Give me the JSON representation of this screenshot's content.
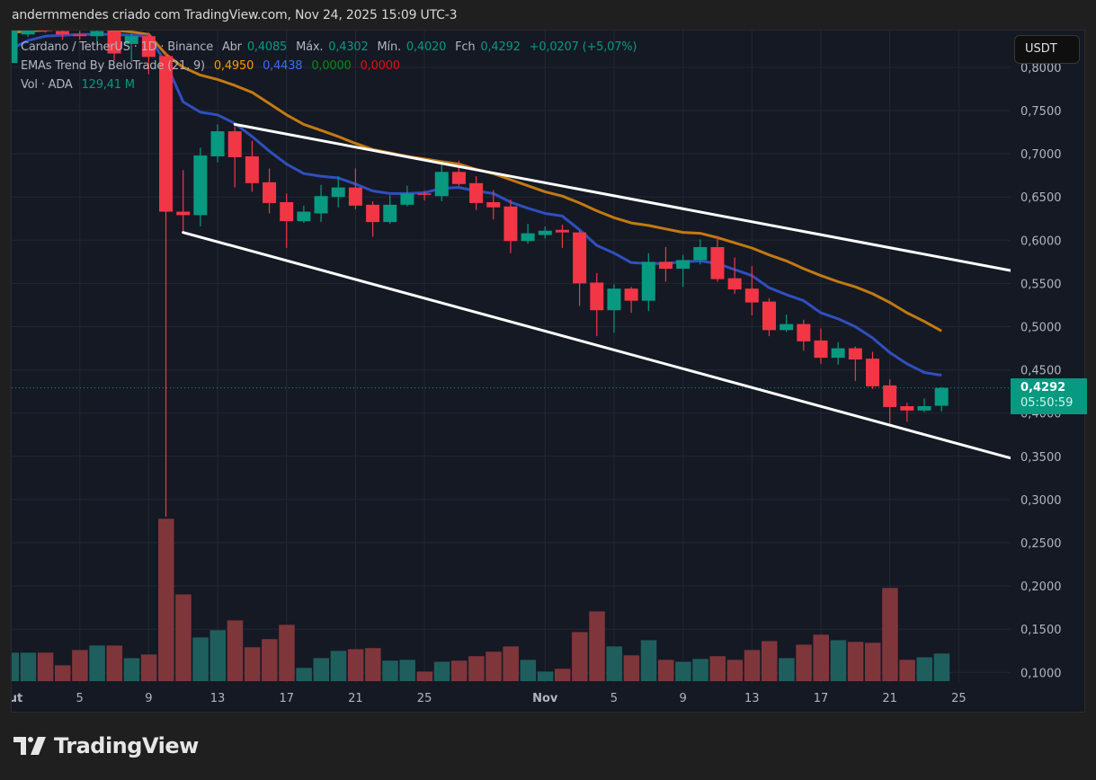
{
  "header": {
    "attribution": "andermmendes criado com TradingView.com, Nov 24, 2025 15:09 UTC-3"
  },
  "legend": {
    "symbol": "Cardano / TetherUS · 1D · Binance",
    "open_label": "Abr",
    "open": "0,4085",
    "high_label": "Máx.",
    "high": "0,4302",
    "low_label": "Mín.",
    "low": "0,4020",
    "close_label": "Fch",
    "close": "0,4292",
    "change": "+0,0207 (+5,07%)",
    "indicator": "EMAs Trend By BeloTrade (21, 9)",
    "ema_slow": "0,4950",
    "ema_fast": "0,4438",
    "ind_green": "0,0000",
    "ind_red": "0,0000",
    "volume_label": "Vol · ADA",
    "volume": "129,41 M"
  },
  "currency_button": "USDT",
  "last_price": {
    "price": "0,4292",
    "countdown": "05:50:59"
  },
  "logo": {
    "text": "TradingView"
  },
  "colors": {
    "up": "#089981",
    "down": "#f23645",
    "vol_up": "#1e5f5e",
    "vol_down": "#7f363b",
    "ema_slow": "#c27a12",
    "ema_fast": "#2f4fbf",
    "trendline": "#ffffff",
    "background": "#151924",
    "legend_slow": "#ff9800",
    "legend_fast": "#3a6cf4",
    "legend_green": "#0b8a13",
    "legend_red": "#e01010"
  },
  "chart_data": {
    "type": "candlestick",
    "title": "Cardano / TetherUS · 1D · Binance",
    "interval": "1D",
    "grid": true,
    "y_axis": {
      "position": "right",
      "unit": "USDT",
      "ylim": [
        0.08,
        0.845
      ],
      "tick_labels": [
        "0,8000",
        "0,7500",
        "0,7000",
        "0,6500",
        "0,6000",
        "0,5500",
        "0,5000",
        "0,4500",
        "0,4000",
        "0,3500",
        "0,3000",
        "0,2500",
        "0,2000",
        "0,1500",
        "0,1000"
      ],
      "ticks": [
        0.8,
        0.75,
        0.7,
        0.65,
        0.6,
        0.55,
        0.5,
        0.45,
        0.4,
        0.35,
        0.3,
        0.25,
        0.2,
        0.15,
        0.1
      ]
    },
    "x_axis": {
      "tick_labels": [
        "Out",
        "5",
        "9",
        "13",
        "17",
        "21",
        "25",
        "Nov",
        "5",
        "9",
        "13",
        "17",
        "21",
        "25"
      ],
      "ticks": [
        "2025-10-01",
        "2025-10-05",
        "2025-10-09",
        "2025-10-13",
        "2025-10-17",
        "2025-10-21",
        "2025-10-25",
        "2025-11-01",
        "2025-11-05",
        "2025-11-09",
        "2025-11-13",
        "2025-11-17",
        "2025-11-21",
        "2025-11-25"
      ]
    },
    "candles": [
      {
        "d": "2025-10-01",
        "o": 0.805,
        "h": 0.85,
        "l": 0.8,
        "c": 0.845,
        "v": 133.5
      },
      {
        "d": "2025-10-02",
        "o": 0.838,
        "h": 0.846,
        "l": 0.835,
        "c": 0.843,
        "v": 133.5
      },
      {
        "d": "2025-10-03",
        "o": 0.846,
        "h": 0.852,
        "l": 0.84,
        "c": 0.842,
        "v": 133.5
      },
      {
        "d": "2025-10-04",
        "o": 0.842,
        "h": 0.846,
        "l": 0.832,
        "c": 0.838,
        "v": 74.5
      },
      {
        "d": "2025-10-05",
        "o": 0.838,
        "h": 0.842,
        "l": 0.832,
        "c": 0.836,
        "v": 146
      },
      {
        "d": "2025-10-06",
        "o": 0.836,
        "h": 0.846,
        "l": 0.83,
        "c": 0.842,
        "v": 167
      },
      {
        "d": "2025-10-07",
        "o": 0.842,
        "h": 0.846,
        "l": 0.808,
        "c": 0.816,
        "v": 167
      },
      {
        "d": "2025-10-08",
        "o": 0.827,
        "h": 0.841,
        "l": 0.806,
        "c": 0.836,
        "v": 108
      },
      {
        "d": "2025-10-09",
        "o": 0.836,
        "h": 0.84,
        "l": 0.792,
        "c": 0.812,
        "v": 125
      },
      {
        "d": "2025-10-10",
        "o": 0.813,
        "h": 0.818,
        "l": 0.28,
        "c": 0.633,
        "v": 761.5
      },
      {
        "d": "2025-10-11",
        "o": 0.633,
        "h": 0.681,
        "l": 0.608,
        "c": 0.629,
        "v": 407
      },
      {
        "d": "2025-10-12",
        "o": 0.629,
        "h": 0.707,
        "l": 0.616,
        "c": 0.698,
        "v": 205
      },
      {
        "d": "2025-10-13",
        "o": 0.697,
        "h": 0.734,
        "l": 0.69,
        "c": 0.726,
        "v": 239
      },
      {
        "d": "2025-10-14",
        "o": 0.726,
        "h": 0.732,
        "l": 0.661,
        "c": 0.696,
        "v": 285
      },
      {
        "d": "2025-10-15",
        "o": 0.697,
        "h": 0.715,
        "l": 0.656,
        "c": 0.666,
        "v": 159
      },
      {
        "d": "2025-10-16",
        "o": 0.667,
        "h": 0.683,
        "l": 0.631,
        "c": 0.643,
        "v": 197
      },
      {
        "d": "2025-10-17",
        "o": 0.644,
        "h": 0.654,
        "l": 0.591,
        "c": 0.622,
        "v": 264
      },
      {
        "d": "2025-10-18",
        "o": 0.622,
        "h": 0.64,
        "l": 0.62,
        "c": 0.633,
        "v": 62
      },
      {
        "d": "2025-10-19",
        "o": 0.631,
        "h": 0.664,
        "l": 0.621,
        "c": 0.651,
        "v": 108
      },
      {
        "d": "2025-10-20",
        "o": 0.65,
        "h": 0.674,
        "l": 0.638,
        "c": 0.661,
        "v": 142
      },
      {
        "d": "2025-10-21",
        "o": 0.661,
        "h": 0.683,
        "l": 0.636,
        "c": 0.64,
        "v": 150
      },
      {
        "d": "2025-10-22",
        "o": 0.641,
        "h": 0.645,
        "l": 0.604,
        "c": 0.621,
        "v": 155
      },
      {
        "d": "2025-10-23",
        "o": 0.621,
        "h": 0.652,
        "l": 0.619,
        "c": 0.641,
        "v": 96
      },
      {
        "d": "2025-10-24",
        "o": 0.641,
        "h": 0.663,
        "l": 0.639,
        "c": 0.654,
        "v": 100
      },
      {
        "d": "2025-10-25",
        "o": 0.654,
        "h": 0.657,
        "l": 0.646,
        "c": 0.653,
        "v": 45
      },
      {
        "d": "2025-10-26",
        "o": 0.651,
        "h": 0.688,
        "l": 0.645,
        "c": 0.679,
        "v": 91
      },
      {
        "d": "2025-10-27",
        "o": 0.679,
        "h": 0.692,
        "l": 0.663,
        "c": 0.665,
        "v": 96
      },
      {
        "d": "2025-10-28",
        "o": 0.666,
        "h": 0.674,
        "l": 0.635,
        "c": 0.643,
        "v": 117
      },
      {
        "d": "2025-10-29",
        "o": 0.644,
        "h": 0.658,
        "l": 0.624,
        "c": 0.638,
        "v": 138
      },
      {
        "d": "2025-10-30",
        "o": 0.639,
        "h": 0.647,
        "l": 0.585,
        "c": 0.599,
        "v": 163
      },
      {
        "d": "2025-10-31",
        "o": 0.599,
        "h": 0.619,
        "l": 0.596,
        "c": 0.608,
        "v": 100
      },
      {
        "d": "2025-11-01",
        "o": 0.606,
        "h": 0.616,
        "l": 0.602,
        "c": 0.611,
        "v": 45
      },
      {
        "d": "2025-11-02",
        "o": 0.612,
        "h": 0.618,
        "l": 0.591,
        "c": 0.609,
        "v": 58
      },
      {
        "d": "2025-11-03",
        "o": 0.609,
        "h": 0.611,
        "l": 0.524,
        "c": 0.55,
        "v": 230
      },
      {
        "d": "2025-11-04",
        "o": 0.551,
        "h": 0.562,
        "l": 0.489,
        "c": 0.519,
        "v": 327
      },
      {
        "d": "2025-11-05",
        "o": 0.519,
        "h": 0.549,
        "l": 0.493,
        "c": 0.544,
        "v": 163
      },
      {
        "d": "2025-11-06",
        "o": 0.544,
        "h": 0.546,
        "l": 0.516,
        "c": 0.53,
        "v": 121
      },
      {
        "d": "2025-11-07",
        "o": 0.53,
        "h": 0.585,
        "l": 0.518,
        "c": 0.575,
        "v": 192
      },
      {
        "d": "2025-11-08",
        "o": 0.575,
        "h": 0.592,
        "l": 0.552,
        "c": 0.567,
        "v": 100
      },
      {
        "d": "2025-11-09",
        "o": 0.567,
        "h": 0.583,
        "l": 0.546,
        "c": 0.577,
        "v": 91
      },
      {
        "d": "2025-11-10",
        "o": 0.577,
        "h": 0.601,
        "l": 0.572,
        "c": 0.592,
        "v": 104
      },
      {
        "d": "2025-11-11",
        "o": 0.592,
        "h": 0.605,
        "l": 0.552,
        "c": 0.555,
        "v": 117
      },
      {
        "d": "2025-11-12",
        "o": 0.556,
        "h": 0.58,
        "l": 0.538,
        "c": 0.543,
        "v": 100
      },
      {
        "d": "2025-11-13",
        "o": 0.544,
        "h": 0.57,
        "l": 0.513,
        "c": 0.528,
        "v": 146
      },
      {
        "d": "2025-11-14",
        "o": 0.529,
        "h": 0.533,
        "l": 0.489,
        "c": 0.496,
        "v": 188
      },
      {
        "d": "2025-11-15",
        "o": 0.496,
        "h": 0.514,
        "l": 0.494,
        "c": 0.503,
        "v": 108
      },
      {
        "d": "2025-11-16",
        "o": 0.503,
        "h": 0.508,
        "l": 0.472,
        "c": 0.483,
        "v": 171
      },
      {
        "d": "2025-11-17",
        "o": 0.484,
        "h": 0.498,
        "l": 0.457,
        "c": 0.464,
        "v": 218
      },
      {
        "d": "2025-11-18",
        "o": 0.464,
        "h": 0.482,
        "l": 0.456,
        "c": 0.475,
        "v": 192
      },
      {
        "d": "2025-11-19",
        "o": 0.475,
        "h": 0.477,
        "l": 0.437,
        "c": 0.462,
        "v": 184
      },
      {
        "d": "2025-11-20",
        "o": 0.463,
        "h": 0.471,
        "l": 0.428,
        "c": 0.431,
        "v": 180
      },
      {
        "d": "2025-11-21",
        "o": 0.432,
        "h": 0.439,
        "l": 0.387,
        "c": 0.407,
        "v": 437
      },
      {
        "d": "2025-11-22",
        "o": 0.408,
        "h": 0.412,
        "l": 0.39,
        "c": 0.403,
        "v": 100
      },
      {
        "d": "2025-11-23",
        "o": 0.403,
        "h": 0.417,
        "l": 0.401,
        "c": 0.408,
        "v": 112
      },
      {
        "d": "2025-11-24",
        "o": 0.4085,
        "h": 0.4302,
        "l": 0.402,
        "c": 0.4292,
        "v": 129.41
      }
    ],
    "volume_unit": "M ADA",
    "series": [
      {
        "name": "EMA 21",
        "values": [
          0.84,
          0.842,
          0.843,
          0.845,
          0.845,
          0.845,
          0.843,
          0.841,
          0.838,
          0.815,
          0.8,
          0.791,
          0.786,
          0.779,
          0.771,
          0.758,
          0.745,
          0.734,
          0.727,
          0.72,
          0.712,
          0.705,
          0.701,
          0.697,
          0.694,
          0.691,
          0.688,
          0.682,
          0.677,
          0.67,
          0.663,
          0.656,
          0.651,
          0.643,
          0.634,
          0.626,
          0.62,
          0.617,
          0.613,
          0.609,
          0.608,
          0.603,
          0.597,
          0.591,
          0.583,
          0.576,
          0.567,
          0.559,
          0.552,
          0.546,
          0.538,
          0.528,
          0.516,
          0.506,
          0.495
        ]
      },
      {
        "name": "EMA 9",
        "values": [
          0.821,
          0.831,
          0.836,
          0.837,
          0.838,
          0.838,
          0.838,
          0.837,
          0.836,
          0.805,
          0.76,
          0.748,
          0.745,
          0.735,
          0.72,
          0.703,
          0.688,
          0.677,
          0.674,
          0.672,
          0.665,
          0.657,
          0.654,
          0.654,
          0.655,
          0.66,
          0.661,
          0.657,
          0.654,
          0.644,
          0.637,
          0.631,
          0.628,
          0.612,
          0.594,
          0.585,
          0.574,
          0.573,
          0.573,
          0.575,
          0.576,
          0.573,
          0.566,
          0.559,
          0.545,
          0.537,
          0.53,
          0.516,
          0.509,
          0.5,
          0.487,
          0.47,
          0.457,
          0.447,
          0.4438
        ]
      }
    ],
    "trendlines": [
      {
        "from": {
          "d": "2025-10-14",
          "p": 0.734
        },
        "to": {
          "d": "2025-11-28",
          "p": 0.565
        }
      },
      {
        "from": {
          "d": "2025-10-11",
          "p": 0.609
        },
        "to": {
          "d": "2025-11-28",
          "p": 0.348
        }
      }
    ],
    "last_price_line": 0.4292
  }
}
